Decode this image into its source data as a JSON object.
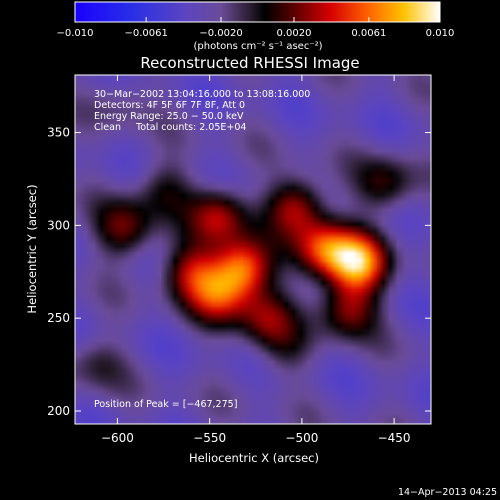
{
  "chart_data": {
    "type": "heatmap",
    "title": "Reconstructed RHESSI Image",
    "xlabel": "Heliocentric X (arcsec)",
    "ylabel": "Heliocentric Y (arcsec)",
    "xlim": [
      -623,
      -430
    ],
    "ylim": [
      193,
      381
    ],
    "x_ticks": [
      {
        "value": -600,
        "label": "−600"
      },
      {
        "value": -550,
        "label": "−550"
      },
      {
        "value": -500,
        "label": "−500"
      },
      {
        "value": -450,
        "label": "−450"
      }
    ],
    "y_ticks": [
      {
        "value": 200,
        "label": "200"
      },
      {
        "value": 250,
        "label": "250"
      },
      {
        "value": 300,
        "label": "300"
      },
      {
        "value": 350,
        "label": "350"
      }
    ],
    "colorbar": {
      "min": -0.01,
      "max": 0.01,
      "unit_label": "(photons cm⁻² s⁻¹ asec⁻²)",
      "ticks": [
        {
          "value": -0.01,
          "label": "−0.010"
        },
        {
          "value": -0.0061,
          "label": "−0.0061"
        },
        {
          "value": -0.002,
          "label": "−0.0020"
        },
        {
          "value": 0.002,
          "label": "0.0020"
        },
        {
          "value": 0.0061,
          "label": "0.0061"
        },
        {
          "value": 0.01,
          "label": "0.010"
        }
      ]
    },
    "sources": [
      {
        "x": -470,
        "y": 280,
        "amplitude": 0.01
      },
      {
        "x": -532,
        "y": 277,
        "amplitude": 0.0093
      },
      {
        "x": -488,
        "y": 287,
        "amplitude": 0.0078
      },
      {
        "x": -545,
        "y": 263,
        "amplitude": 0.0065
      },
      {
        "x": -503,
        "y": 310,
        "amplitude": 0.0065
      },
      {
        "x": -545,
        "y": 305,
        "amplitude": 0.0062
      },
      {
        "x": -475,
        "y": 255,
        "amplitude": 0.0058
      },
      {
        "x": -560,
        "y": 275,
        "amplitude": 0.0058
      },
      {
        "x": -520,
        "y": 250,
        "amplitude": 0.0048
      },
      {
        "x": -596,
        "y": 298,
        "amplitude": 0.0052
      },
      {
        "x": -455,
        "y": 322,
        "amplitude": 0.0042
      },
      {
        "x": -575,
        "y": 320,
        "amplitude": 0.0032
      },
      {
        "x": -510,
        "y": 232,
        "amplitude": 0.0022
      },
      {
        "x": -612,
        "y": 226,
        "amplitude": 0.0026
      },
      {
        "x": -598,
        "y": 366,
        "amplitude": 0.0016
      }
    ],
    "annotations": [
      "30−Mar−2002 13:04:16.000 to 13:08:16.000",
      "Detectors: 4F 5F 6F 7F 8F, Att 0",
      "Energy Range: 25.0 − 50.0 keV",
      "Clean     Total counts: 2.05E+04",
      "Position of Peak = [−467,275]"
    ],
    "peak": {
      "x": -467,
      "y": 275
    }
  },
  "timestamp": "14−Apr−2013 04:25"
}
